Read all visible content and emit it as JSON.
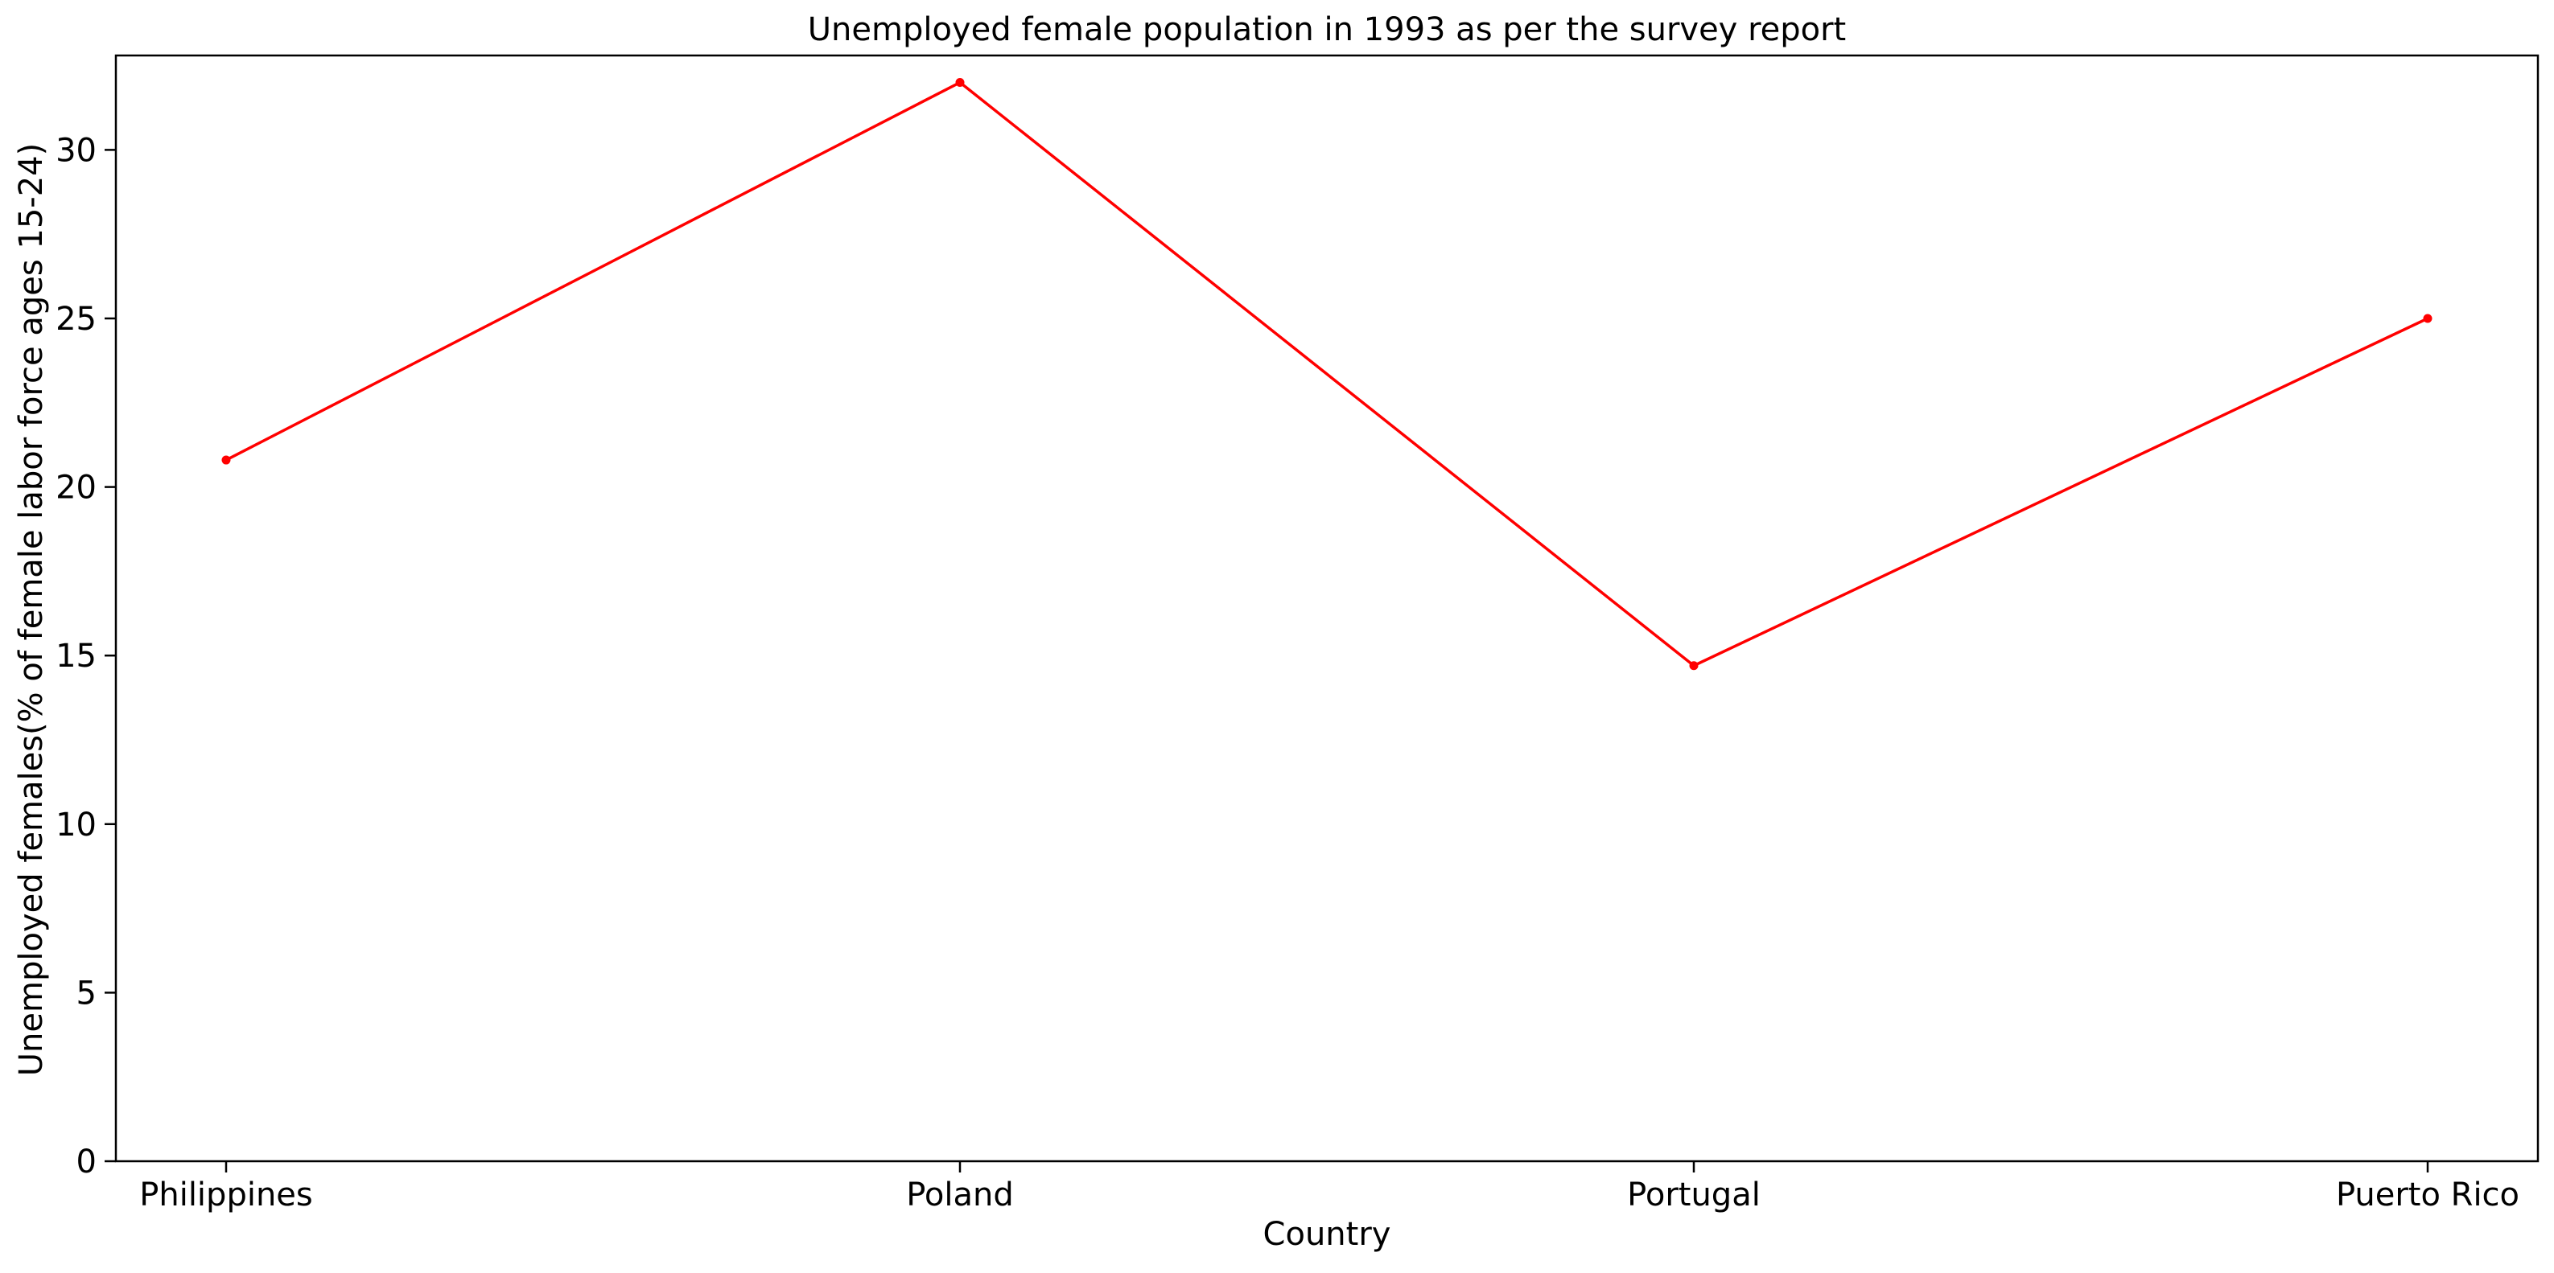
{
  "colors": {
    "series_line": "#ff0000",
    "axes": "#000000",
    "background": "#ffffff"
  },
  "chart_data": {
    "type": "line",
    "title": "Unemployed female population in 1993 as per the survey report",
    "xlabel": "Country",
    "ylabel": "Unemployed females(% of female labor force ages 15-24)",
    "categories": [
      "Philippines",
      "Poland",
      "Portugal",
      "Puerto Rico"
    ],
    "series": [
      {
        "values": [
          20.8,
          32.0,
          14.7,
          25.0
        ],
        "color": "#ff0000",
        "marker": "dot"
      }
    ],
    "ylim": [
      0,
      32.8
    ],
    "yticks": [
      0,
      5,
      10,
      15,
      20,
      25,
      30
    ],
    "grid": false,
    "legend": "none"
  }
}
